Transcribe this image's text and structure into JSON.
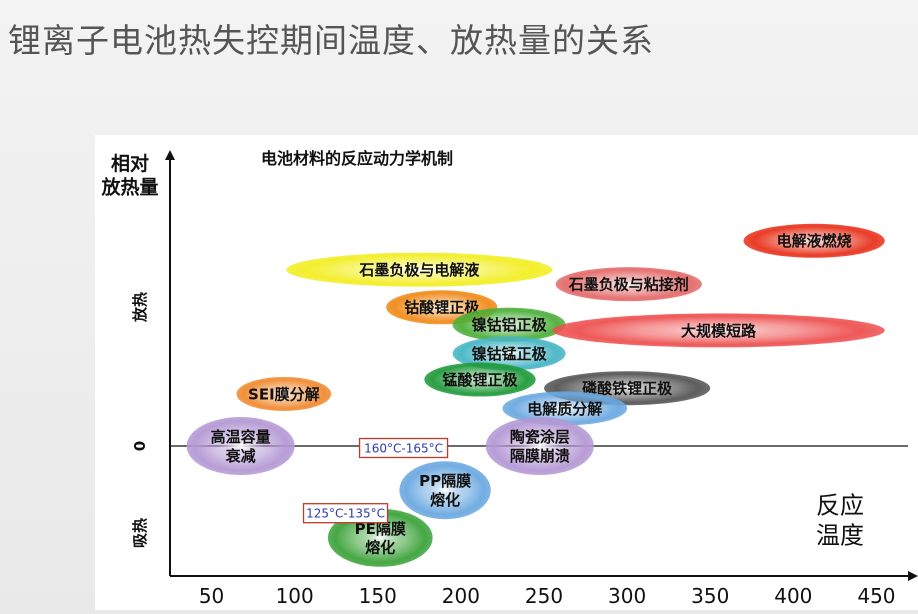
{
  "slide": {
    "title": "锂离子电池热失控期间温度、放热量的关系"
  },
  "chart_data": {
    "type": "scatter",
    "title": "电池材料的反应动力学机制",
    "ylabel": "相对\n放热量",
    "xlabel": "反应\n温度",
    "y_region_labels": {
      "exo": "放热",
      "zero": "0",
      "endo": "吸热"
    },
    "xticks": [
      50,
      100,
      150,
      200,
      250,
      300,
      350,
      400,
      450
    ],
    "xlim": [
      25,
      475
    ],
    "ylim": [
      -1,
      1
    ],
    "grid": false,
    "range_labels": [
      {
        "text": "160°C-165°C",
        "x_from": 160,
        "x_to": 165
      },
      {
        "text": "125°C-135°C",
        "x_from": 125,
        "x_to": 135
      }
    ],
    "reactions": [
      {
        "label": "电解液燃烧",
        "x_from": 370,
        "x_to": 455,
        "y": 0.71,
        "color": "#e8321c"
      },
      {
        "label": "石墨负极与电解液",
        "x_from": 95,
        "x_to": 255,
        "y": 0.61,
        "color": "#f2ee22"
      },
      {
        "label": "石墨负极与粘接剂",
        "x_from": 257,
        "x_to": 345,
        "y": 0.56,
        "color": "#e46a6a"
      },
      {
        "label": "钴酸锂正极",
        "x_from": 155,
        "x_to": 222,
        "y": 0.48,
        "color": "#f08a18"
      },
      {
        "label": "镍钴铝正极",
        "x_from": 195,
        "x_to": 263,
        "y": 0.42,
        "color": "#4caf3a"
      },
      {
        "label": "大规模短路",
        "x_from": 255,
        "x_to": 455,
        "y": 0.4,
        "color": "#ee5050"
      },
      {
        "label": "镍钴锰正极",
        "x_from": 195,
        "x_to": 263,
        "y": 0.32,
        "color": "#46b5c4"
      },
      {
        "label": "锰酸锂正极",
        "x_from": 178,
        "x_to": 245,
        "y": 0.23,
        "color": "#1f9a3a"
      },
      {
        "label": "磷酸铁锂正极",
        "x_from": 250,
        "x_to": 350,
        "y": 0.2,
        "color": "#555555"
      },
      {
        "label": "SEI膜分解",
        "x_from": 65,
        "x_to": 122,
        "y": 0.18,
        "color": "#f08a30"
      },
      {
        "label": "电解质分解",
        "x_from": 225,
        "x_to": 300,
        "y": 0.13,
        "color": "#6aa8e0"
      },
      {
        "label": "高温容量\n衰减",
        "x_from": 35,
        "x_to": 100,
        "y": 0.0,
        "color": "#b498d4"
      },
      {
        "label": "陶瓷涂层\n隔膜崩溃",
        "x_from": 215,
        "x_to": 280,
        "y": 0.0,
        "color": "#b498d4"
      },
      {
        "label": "PP隔膜\n熔化",
        "x_from": 163,
        "x_to": 218,
        "y": -0.13,
        "color": "#6aa8e0"
      },
      {
        "label": "PE隔膜\n熔化",
        "x_from": 120,
        "x_to": 183,
        "y": -0.27,
        "color": "#3ca33a"
      }
    ]
  }
}
